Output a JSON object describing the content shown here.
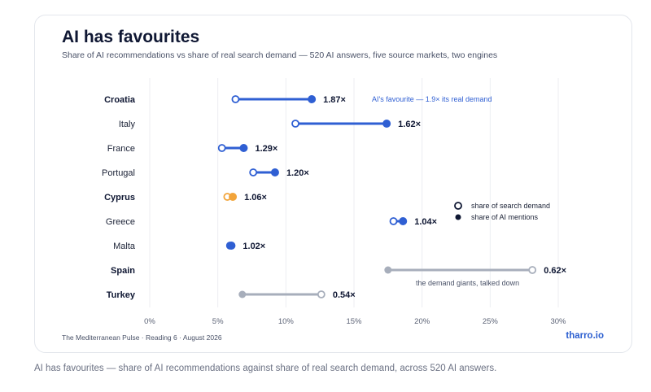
{
  "title": "AI has favourites",
  "subtitle": "Share of AI recommendations vs share of real search demand — 520 AI answers, five source markets, two engines",
  "footer_left": "The Mediterranean Pulse · Reading 6 · August 2026",
  "footer_right": "tharro.io",
  "caption": "AI has favourites — share of AI recommendations against share of real search demand, across 520 AI answers.",
  "colors": {
    "blue": "#2f5fd3",
    "orange": "#f2a43a",
    "gray": "#a7aebb",
    "title": "#0f1733"
  },
  "chart_data": {
    "type": "dumbbell",
    "x_unit": "percent",
    "xlim": [
      0,
      30
    ],
    "x_ticks": [
      "0%",
      "5%",
      "10%",
      "15%",
      "20%",
      "25%",
      "30%"
    ],
    "grid": true,
    "legend": [
      "share of search demand",
      "share of AI mentions"
    ],
    "legend_position": "right",
    "rows": [
      {
        "label": "Croatia",
        "bold": true,
        "demand": 6.3,
        "ai": 11.9,
        "ratio": "1.87×",
        "color": "blue"
      },
      {
        "label": "Italy",
        "bold": false,
        "demand": 10.7,
        "ai": 17.4,
        "ratio": "1.62×",
        "color": "blue"
      },
      {
        "label": "France",
        "bold": false,
        "demand": 5.3,
        "ai": 6.9,
        "ratio": "1.29×",
        "color": "blue"
      },
      {
        "label": "Portugal",
        "bold": false,
        "demand": 7.6,
        "ai": 9.2,
        "ratio": "1.20×",
        "color": "blue"
      },
      {
        "label": "Cyprus",
        "bold": true,
        "demand": 5.7,
        "ai": 6.1,
        "ratio": "1.06×",
        "color": "orange"
      },
      {
        "label": "Greece",
        "bold": false,
        "demand": 17.9,
        "ai": 18.6,
        "ratio": "1.04×",
        "color": "blue"
      },
      {
        "label": "Malta",
        "bold": false,
        "demand": 5.9,
        "ai": 6.0,
        "ratio": "1.02×",
        "color": "blue"
      },
      {
        "label": "Spain",
        "bold": true,
        "demand": 28.1,
        "ai": 17.5,
        "ratio": "0.62×",
        "color": "gray"
      },
      {
        "label": "Turkey",
        "bold": true,
        "demand": 12.6,
        "ai": 6.8,
        "ratio": "0.54×",
        "color": "gray"
      }
    ],
    "annotations": [
      {
        "text": "AI's favourite — 1.9× its real demand",
        "row": 0,
        "color": "blue"
      },
      {
        "text": "the demand giants, talked down",
        "row": 7,
        "color": "gray"
      }
    ]
  }
}
